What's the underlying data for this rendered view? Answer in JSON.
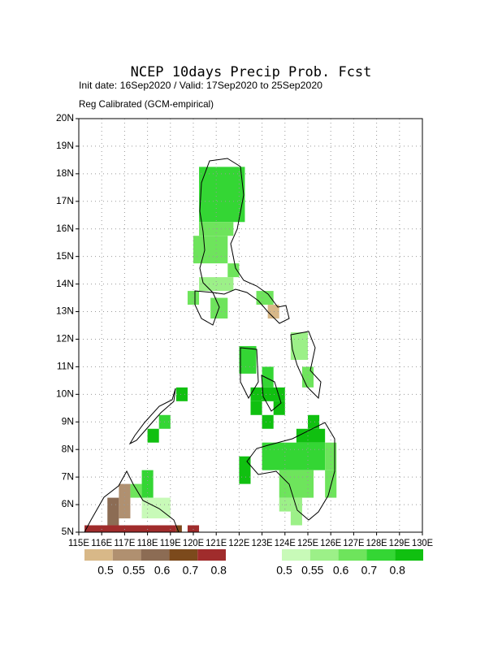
{
  "map": {
    "title": "NCEP 10days Precip Prob. Fcst",
    "subtitle": "Init date: 16Sep2020 / Valid: 17Sep2020 to 25Sep2020",
    "note": "Reg Calibrated (GCM-empirical)",
    "xlim": [
      115,
      130
    ],
    "ylim": [
      5,
      20
    ],
    "xticks": [
      {
        "value": 115,
        "label": "115E"
      },
      {
        "value": 116,
        "label": "116E"
      },
      {
        "value": 117,
        "label": "117E"
      },
      {
        "value": 118,
        "label": "118E"
      },
      {
        "value": 119,
        "label": "119E"
      },
      {
        "value": 120,
        "label": "120E"
      },
      {
        "value": 121,
        "label": "121E"
      },
      {
        "value": 122,
        "label": "122E"
      },
      {
        "value": 123,
        "label": "123E"
      },
      {
        "value": 124,
        "label": "124E"
      },
      {
        "value": 125,
        "label": "125E"
      },
      {
        "value": 126,
        "label": "126E"
      },
      {
        "value": 127,
        "label": "127E"
      },
      {
        "value": 128,
        "label": "128E"
      },
      {
        "value": 129,
        "label": "129E"
      },
      {
        "value": 130,
        "label": "130E"
      }
    ],
    "yticks": [
      {
        "value": 5,
        "label": "5N"
      },
      {
        "value": 6,
        "label": "6N"
      },
      {
        "value": 7,
        "label": "7N"
      },
      {
        "value": 8,
        "label": "8N"
      },
      {
        "value": 9,
        "label": "9N"
      },
      {
        "value": 10,
        "label": "10N"
      },
      {
        "value": 11,
        "label": "11N"
      },
      {
        "value": 12,
        "label": "12N"
      },
      {
        "value": 13,
        "label": "13N"
      },
      {
        "value": 14,
        "label": "14N"
      },
      {
        "value": 15,
        "label": "15N"
      },
      {
        "value": 16,
        "label": "16N"
      },
      {
        "value": 17,
        "label": "17N"
      },
      {
        "value": 18,
        "label": "18N"
      },
      {
        "value": 19,
        "label": "19N"
      },
      {
        "value": 20,
        "label": "20N"
      }
    ],
    "grid": true,
    "levels": [
      0.5,
      0.55,
      0.6,
      0.7,
      0.8
    ],
    "dry_colors": [
      "#d8b888",
      "#b09070",
      "#8c6c54",
      "#7c4a1c",
      "#a02c2c"
    ],
    "wet_colors": [
      "#c8fab8",
      "#9cf088",
      "#6ee45c",
      "#34d634",
      "#10c010"
    ],
    "wet_regions": [
      [
        120.25,
        16.25,
        122.25,
        18.25,
        0.7
      ],
      [
        120.25,
        15.75,
        121.75,
        16.25,
        0.6
      ],
      [
        120.0,
        14.75,
        121.5,
        15.75,
        0.6
      ],
      [
        121.5,
        14.25,
        122.0,
        14.75,
        0.6
      ],
      [
        120.25,
        13.75,
        121.75,
        14.25,
        0.55
      ],
      [
        119.75,
        13.25,
        120.25,
        13.75,
        0.6
      ],
      [
        120.75,
        12.75,
        121.5,
        13.5,
        0.6
      ],
      [
        122.75,
        13.25,
        123.5,
        13.75,
        0.6
      ],
      [
        124.25,
        11.25,
        125.0,
        12.25,
        0.55
      ],
      [
        122.0,
        10.75,
        122.75,
        11.75,
        0.7
      ],
      [
        123.0,
        10.25,
        123.5,
        11.0,
        0.7
      ],
      [
        122.5,
        9.75,
        124.0,
        10.25,
        0.8
      ],
      [
        123.5,
        9.25,
        124.0,
        9.75,
        0.8
      ],
      [
        122.5,
        9.25,
        123.0,
        9.75,
        0.8
      ],
      [
        123.0,
        8.75,
        123.5,
        9.25,
        0.8
      ],
      [
        124.75,
        10.25,
        125.25,
        11.0,
        0.6
      ],
      [
        119.25,
        9.75,
        119.75,
        10.25,
        0.8
      ],
      [
        118.5,
        8.75,
        119.0,
        9.25,
        0.7
      ],
      [
        118.0,
        8.25,
        118.5,
        8.75,
        0.8
      ],
      [
        123.0,
        7.25,
        125.75,
        8.25,
        0.7
      ],
      [
        124.5,
        8.25,
        125.75,
        8.75,
        0.8
      ],
      [
        125.0,
        8.75,
        125.5,
        9.25,
        0.8
      ],
      [
        125.75,
        7.25,
        126.25,
        8.25,
        0.6
      ],
      [
        122.0,
        6.75,
        122.5,
        7.75,
        0.8
      ],
      [
        123.75,
        6.25,
        125.25,
        7.25,
        0.6
      ],
      [
        123.75,
        5.75,
        124.75,
        6.25,
        0.55
      ],
      [
        124.25,
        5.25,
        124.75,
        5.75,
        0.55
      ],
      [
        125.75,
        6.25,
        126.25,
        7.25,
        0.6
      ],
      [
        117.75,
        6.25,
        118.25,
        7.25,
        0.7
      ],
      [
        117.25,
        6.25,
        117.75,
        6.75,
        0.6
      ],
      [
        117.75,
        5.5,
        119.0,
        6.25,
        0.5
      ]
    ],
    "dry_regions": [
      [
        123.25,
        12.75,
        123.75,
        13.25,
        0.5
      ],
      [
        116.25,
        5.25,
        116.75,
        6.25,
        0.6
      ],
      [
        116.75,
        5.5,
        117.25,
        6.75,
        0.55
      ],
      [
        115.25,
        5.0,
        119.25,
        5.25,
        0.8
      ],
      [
        119.25,
        5.0,
        119.5,
        5.25,
        0.7
      ],
      [
        119.75,
        5.0,
        120.25,
        5.25,
        0.8
      ]
    ]
  }
}
